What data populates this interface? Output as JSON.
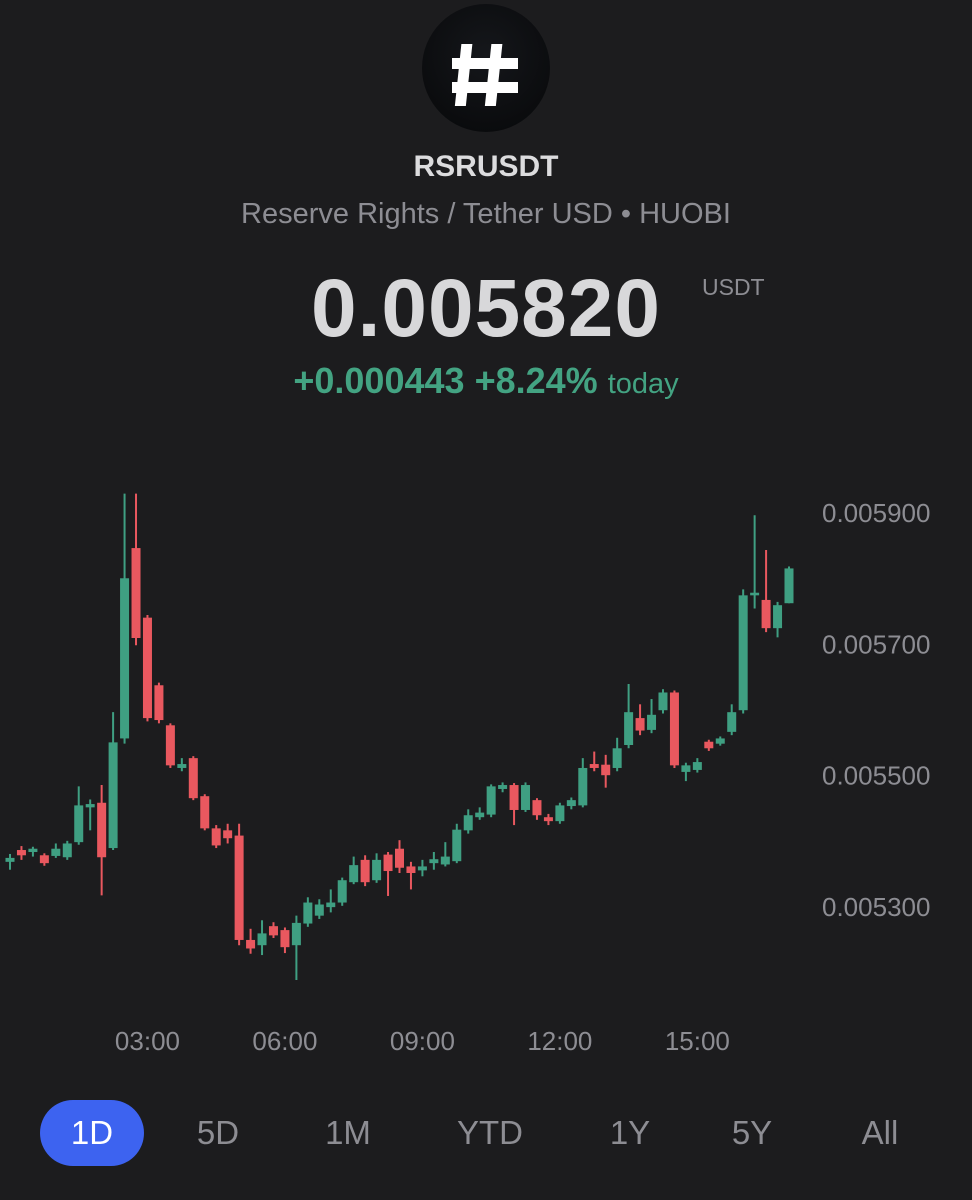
{
  "header": {
    "symbol": "RSRUSDT",
    "description": "Reserve Rights / Tether USD • HUOBI",
    "price": "0.005820",
    "currency": "USDT",
    "change": "+0.000443",
    "change_percent": "+8.24%",
    "change_period": "today"
  },
  "chart_data": {
    "type": "candlestick",
    "categories": [
      null,
      null,
      null,
      null,
      null,
      null,
      null,
      null,
      null,
      null,
      null,
      null,
      "03:00",
      null,
      null,
      null,
      null,
      null,
      null,
      null,
      null,
      null,
      null,
      null,
      "06:00",
      null,
      null,
      null,
      null,
      null,
      null,
      null,
      null,
      null,
      null,
      null,
      "09:00",
      null,
      null,
      null,
      null,
      null,
      null,
      null,
      null,
      null,
      null,
      null,
      "12:00",
      null,
      null,
      null,
      null,
      null,
      null,
      null,
      null,
      null,
      null,
      null,
      "15:00",
      null,
      null,
      null,
      null,
      null,
      null,
      null,
      null
    ],
    "open": [
      0.005372,
      0.00539,
      0.005387,
      0.005382,
      0.005381,
      0.005379,
      0.005402,
      0.005455,
      0.005462,
      0.005393,
      0.00556,
      0.00585,
      0.005744,
      0.005641,
      0.00558,
      0.005515,
      0.00553,
      0.005472,
      0.005423,
      0.00542,
      0.005412,
      0.005253,
      0.005245,
      0.005274,
      0.005268,
      0.005245,
      0.005278,
      0.00529,
      0.005303,
      0.00531,
      0.005341,
      0.005375,
      0.005344,
      0.005383,
      0.005392,
      0.005365,
      0.005359,
      0.00537,
      0.005368,
      0.005373,
      0.00542,
      0.00544,
      0.005444,
      0.005483,
      0.005489,
      0.005451,
      0.005466,
      0.00544,
      0.005434,
      0.005457,
      0.005458,
      0.005521,
      0.00552,
      0.005515,
      0.00555,
      0.005591,
      0.005573,
      0.005603,
      0.00563,
      0.005509,
      0.005512,
      0.005555,
      0.005552,
      0.00557,
      0.005603,
      0.005778,
      0.005771,
      0.005728,
      0.005766
    ],
    "high": [
      0.005384,
      0.005396,
      0.005395,
      0.005385,
      0.0054,
      0.005404,
      0.005487,
      0.005467,
      0.005489,
      0.0056,
      0.005933,
      0.005933,
      0.005748,
      0.005645,
      0.005583,
      0.00553,
      0.005533,
      0.005475,
      0.005428,
      0.00543,
      0.00543,
      0.00527,
      0.005283,
      0.00528,
      0.005272,
      0.00529,
      0.005318,
      0.005315,
      0.00533,
      0.005348,
      0.00538,
      0.005382,
      0.005385,
      0.005387,
      0.005405,
      0.005372,
      0.005375,
      0.005387,
      0.005402,
      0.00543,
      0.005452,
      0.005455,
      0.00549,
      0.005493,
      0.005492,
      0.005493,
      0.005469,
      0.005445,
      0.005462,
      0.00547,
      0.00553,
      0.00554,
      0.005535,
      0.005561,
      0.005643,
      0.005612,
      0.00562,
      0.005635,
      0.005633,
      0.005523,
      0.00553,
      0.005558,
      0.005563,
      0.005612,
      0.005787,
      0.0059,
      0.005847,
      0.005768,
      0.005822
    ],
    "low": [
      0.00536,
      0.005375,
      0.00538,
      0.005366,
      0.005378,
      0.005375,
      0.005398,
      0.00542,
      0.005321,
      0.00539,
      0.005552,
      0.005702,
      0.005586,
      0.005583,
      0.005515,
      0.00551,
      0.005466,
      0.00542,
      0.005393,
      0.0054,
      0.005245,
      0.005232,
      0.00523,
      0.005256,
      0.005233,
      0.005192,
      0.005273,
      0.005285,
      0.005295,
      0.005305,
      0.005338,
      0.005335,
      0.00534,
      0.00532,
      0.005355,
      0.00533,
      0.00535,
      0.00536,
      0.005365,
      0.00537,
      0.005415,
      0.005436,
      0.00544,
      0.005478,
      0.005428,
      0.005448,
      0.005436,
      0.005428,
      0.00543,
      0.005452,
      0.005455,
      0.00551,
      0.005485,
      0.00551,
      0.005545,
      0.005565,
      0.005568,
      0.005598,
      0.005515,
      0.005495,
      0.005508,
      0.005541,
      0.005549,
      0.005565,
      0.005598,
      0.005758,
      0.005722,
      0.005714,
      0.005766
    ],
    "close": [
      0.005378,
      0.005382,
      0.005392,
      0.00537,
      0.005392,
      0.0054,
      0.005458,
      0.00546,
      0.005379,
      0.005554,
      0.005804,
      0.005713,
      0.005591,
      0.005588,
      0.005519,
      0.005521,
      0.005469,
      0.005423,
      0.005397,
      0.005408,
      0.005253,
      0.00524,
      0.005263,
      0.00526,
      0.005242,
      0.005279,
      0.00531,
      0.005307,
      0.00531,
      0.005344,
      0.005367,
      0.005341,
      0.005375,
      0.005358,
      0.005363,
      0.005355,
      0.005365,
      0.005376,
      0.00538,
      0.005421,
      0.005443,
      0.005447,
      0.005487,
      0.005489,
      0.005451,
      0.005489,
      0.005443,
      0.005434,
      0.005458,
      0.005466,
      0.005515,
      0.005515,
      0.005504,
      0.005545,
      0.0056,
      0.005572,
      0.005596,
      0.00563,
      0.005519,
      0.005519,
      0.005524,
      0.005545,
      0.00556,
      0.0056,
      0.005778,
      0.005782,
      0.005728,
      0.005763,
      0.005819
    ],
    "up_color": "#3f9f82",
    "down_color": "#e9585f",
    "ylim": [
      0.00516,
      0.00594
    ],
    "yticks": [
      {
        "value": 0.0053,
        "label": "0.005300"
      },
      {
        "value": 0.0055,
        "label": "0.005500"
      },
      {
        "value": 0.0057,
        "label": "0.005700"
      },
      {
        "value": 0.0059,
        "label": "0.005900"
      }
    ]
  },
  "ranges": [
    "1D",
    "5D",
    "1M",
    "YTD",
    "1Y",
    "5Y",
    "All"
  ]
}
